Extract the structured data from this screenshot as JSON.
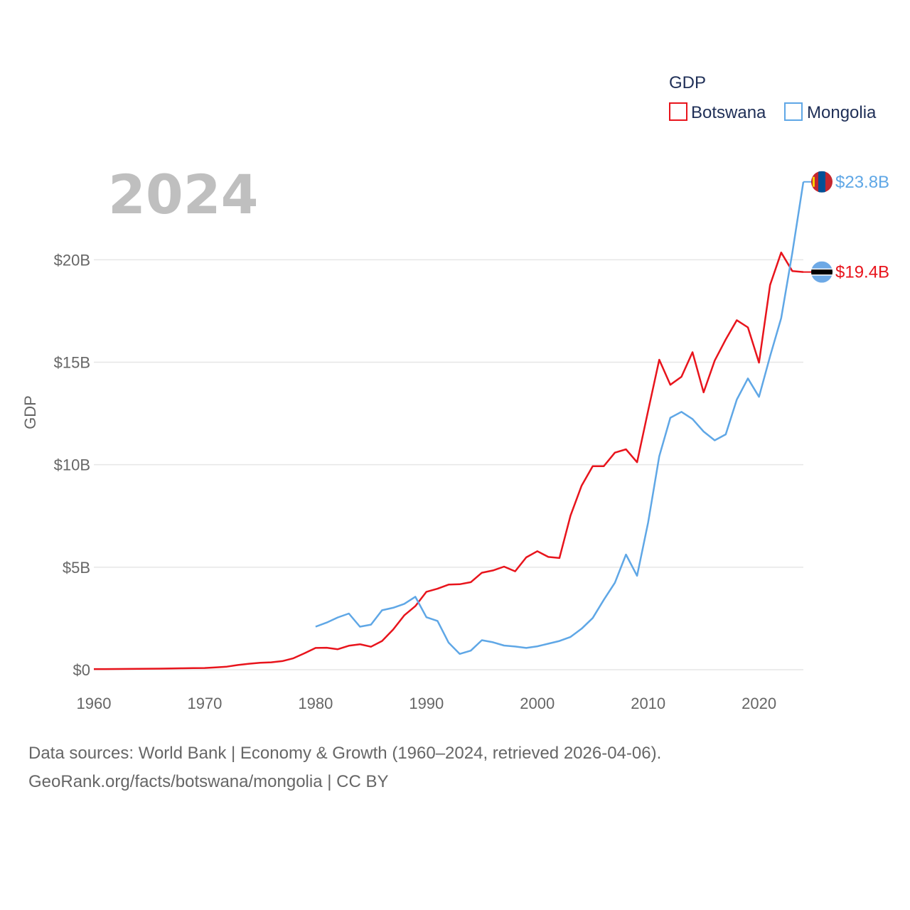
{
  "chart_data": {
    "type": "line",
    "title": "2024",
    "xlabel": "",
    "ylabel": "GDP",
    "xlim": [
      1960,
      2024
    ],
    "ylim": [
      0,
      24000000000
    ],
    "grid": true,
    "x_ticks": [
      1960,
      1970,
      1980,
      1990,
      2000,
      2010,
      2020
    ],
    "x_tick_labels": [
      "1960",
      "1970",
      "1980",
      "1990",
      "2000",
      "2010",
      "2020"
    ],
    "y_ticks": [
      0,
      5000000000,
      10000000000,
      15000000000,
      20000000000
    ],
    "y_tick_labels": [
      "$0",
      "$5B",
      "$10B",
      "$15B",
      "$20B"
    ],
    "legend": {
      "title": "GDP",
      "position": "top-right",
      "entries": [
        "Botswana",
        "Mongolia"
      ]
    },
    "series": [
      {
        "name": "Botswana",
        "color": "#e8141c",
        "end_label": "$19.4B",
        "flag": "botswana-flag",
        "x": [
          1960,
          1961,
          1962,
          1963,
          1964,
          1965,
          1966,
          1967,
          1968,
          1969,
          1970,
          1971,
          1972,
          1973,
          1974,
          1975,
          1976,
          1977,
          1978,
          1979,
          1980,
          1981,
          1982,
          1983,
          1984,
          1985,
          1986,
          1987,
          1988,
          1989,
          1990,
          1991,
          1992,
          1993,
          1994,
          1995,
          1996,
          1997,
          1998,
          1999,
          2000,
          2001,
          2002,
          2003,
          2004,
          2005,
          2006,
          2007,
          2008,
          2009,
          2010,
          2011,
          2012,
          2013,
          2014,
          2015,
          2016,
          2017,
          2018,
          2019,
          2020,
          2021,
          2022,
          2023,
          2024
        ],
        "values": [
          30000000,
          32000000,
          35000000,
          38000000,
          42000000,
          47000000,
          53000000,
          60000000,
          68000000,
          75000000,
          84000000,
          110000000,
          150000000,
          230000000,
          290000000,
          340000000,
          360000000,
          420000000,
          560000000,
          800000000,
          1060000000,
          1070000000,
          1000000000,
          1170000000,
          1240000000,
          1120000000,
          1400000000,
          1960000000,
          2650000000,
          3100000000,
          3800000000,
          3950000000,
          4150000000,
          4170000000,
          4270000000,
          4730000000,
          4840000000,
          5030000000,
          4800000000,
          5480000000,
          5780000000,
          5500000000,
          5450000000,
          7520000000,
          8980000000,
          9930000000,
          9930000000,
          10590000000,
          10750000000,
          10120000000,
          12640000000,
          15120000000,
          13900000000,
          14290000000,
          15490000000,
          13530000000,
          15080000000,
          16110000000,
          17050000000,
          16700000000,
          14980000000,
          18770000000,
          20350000000,
          19450000000,
          19400000000
        ]
      },
      {
        "name": "Mongolia",
        "color": "#5fa7e6",
        "end_label": "$23.8B",
        "flag": "mongolia-flag",
        "x": [
          1980,
          1981,
          1982,
          1983,
          1984,
          1985,
          1986,
          1987,
          1988,
          1989,
          1990,
          1991,
          1992,
          1993,
          1994,
          1995,
          1996,
          1997,
          1998,
          1999,
          2000,
          2001,
          2002,
          2003,
          2004,
          2005,
          2006,
          2007,
          2008,
          2009,
          2010,
          2011,
          2012,
          2013,
          2014,
          2015,
          2016,
          2017,
          2018,
          2019,
          2020,
          2021,
          2022,
          2023,
          2024
        ],
        "values": [
          2100000000,
          2300000000,
          2550000000,
          2740000000,
          2100000000,
          2200000000,
          2900000000,
          3020000000,
          3210000000,
          3560000000,
          2560000000,
          2380000000,
          1320000000,
          770000000,
          930000000,
          1440000000,
          1340000000,
          1180000000,
          1130000000,
          1060000000,
          1140000000,
          1270000000,
          1400000000,
          1600000000,
          2000000000,
          2520000000,
          3410000000,
          4240000000,
          5620000000,
          4580000000,
          7190000000,
          10410000000,
          12290000000,
          12580000000,
          12230000000,
          11620000000,
          11190000000,
          11480000000,
          13180000000,
          14210000000,
          13310000000,
          15290000000,
          17150000000,
          20320000000,
          23800000000
        ]
      }
    ]
  },
  "source": {
    "line1": "Data sources: World Bank | Economy & Growth (1960–2024, retrieved 2026-04-06).",
    "line2": "GeoRank.org/facts/botswana/mongolia | CC BY"
  }
}
